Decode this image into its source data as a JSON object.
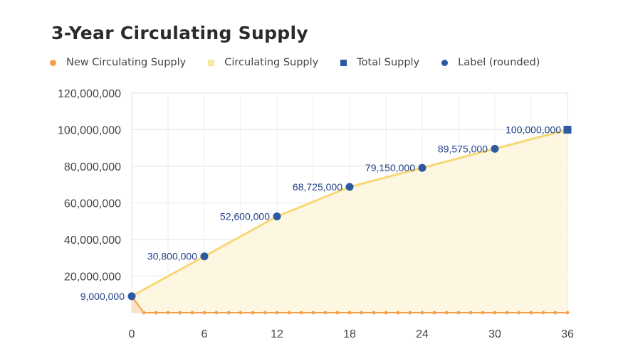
{
  "title": "3-Year Circulating Supply",
  "legend": [
    {
      "label": "New Circulating Supply",
      "color": "#f4a04a",
      "shape": "circle"
    },
    {
      "label": "Circulating Supply",
      "color": "#f8e6a4",
      "shape": "square"
    },
    {
      "label": "Total Supply",
      "color": "#2c5aa0",
      "shape": "square"
    },
    {
      "label": "Label (rounded)",
      "color": "#2c5aa0",
      "shape": "circle"
    }
  ],
  "chart_data": {
    "type": "line",
    "title": "3-Year Circulating Supply",
    "xlabel": "",
    "ylabel": "",
    "xlim": [
      0,
      36
    ],
    "ylim": [
      0,
      120000000
    ],
    "x_ticks": [
      "0",
      "6",
      "12",
      "18",
      "24",
      "30",
      "36"
    ],
    "y_ticks": [
      "120,000,000",
      "100,000,000",
      "80,000,000",
      "60,000,000",
      "40,000,000",
      "20,000,000"
    ],
    "grid": true,
    "legend_position": "top",
    "series": [
      {
        "name": "Circulating Supply",
        "type": "area",
        "color": "#f8dd7a",
        "x": [
          0,
          6,
          12,
          18,
          24,
          30,
          36
        ],
        "values": [
          9000000,
          30800000,
          52600000,
          68725000,
          79150000,
          89575000,
          100000000
        ]
      },
      {
        "name": "New Circulating Supply",
        "type": "line",
        "color": "#f4a04a",
        "x": [
          0,
          1,
          2,
          3,
          4,
          5,
          6,
          7,
          8,
          9,
          10,
          11,
          12,
          13,
          14,
          15,
          16,
          17,
          18,
          19,
          20,
          21,
          22,
          23,
          24,
          25,
          26,
          27,
          28,
          29,
          30,
          31,
          32,
          33,
          34,
          35,
          36
        ],
        "values": [
          9000000,
          0,
          0,
          0,
          0,
          0,
          0,
          0,
          0,
          0,
          0,
          0,
          0,
          0,
          0,
          0,
          0,
          0,
          0,
          0,
          0,
          0,
          0,
          0,
          0,
          0,
          0,
          0,
          0,
          0,
          0,
          0,
          0,
          0,
          0,
          0,
          0
        ]
      },
      {
        "name": "Label (rounded)",
        "type": "scatter",
        "color": "#2c5aa0",
        "x": [
          0,
          6,
          12,
          18,
          24,
          30
        ],
        "values": [
          9000000,
          30800000,
          52600000,
          68725000,
          79150000,
          89575000
        ],
        "labels": [
          "9,000,000",
          "30,800,000",
          "52,600,000",
          "68,725,000",
          "79,150,000",
          "89,575,000"
        ]
      },
      {
        "name": "Total Supply",
        "type": "scatter",
        "color": "#2c5aa0",
        "x": [
          36
        ],
        "values": [
          100000000
        ],
        "labels": [
          "100,000,000"
        ]
      }
    ]
  }
}
